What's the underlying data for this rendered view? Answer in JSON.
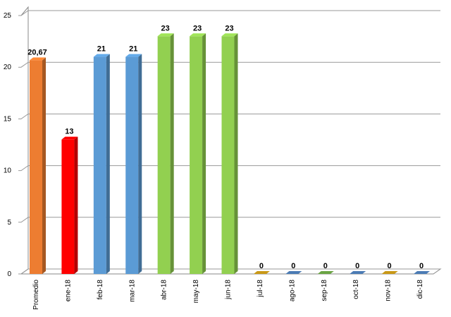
{
  "chart_data": {
    "type": "bar3d",
    "categories": [
      "Promedio",
      "ene-18",
      "feb-18",
      "mar-18",
      "abr-18",
      "may-18",
      "jun-18",
      "jul-18",
      "ago-18",
      "sep-18",
      "oct-18",
      "nov-18",
      "dic-18"
    ],
    "values": [
      20.67,
      13,
      21,
      21,
      23,
      23,
      23,
      0,
      0,
      0,
      0,
      0,
      0
    ],
    "value_labels": [
      "20,67",
      "13",
      "21",
      "21",
      "23",
      "23",
      "23",
      "0",
      "0",
      "0",
      "0",
      "0",
      "0"
    ],
    "colors": [
      "#ed7d31",
      "#ff0000",
      "#5b9bd5",
      "#5b9bd5",
      "#92d050",
      "#92d050",
      "#92d050",
      "#d4a017",
      "#4f81bd",
      "#70ad47",
      "#4f81bd",
      "#d4a017",
      "#4f81bd"
    ],
    "ylim": [
      0,
      25
    ],
    "yticks": [
      0,
      5,
      10,
      15,
      20,
      25
    ],
    "grid": true
  }
}
